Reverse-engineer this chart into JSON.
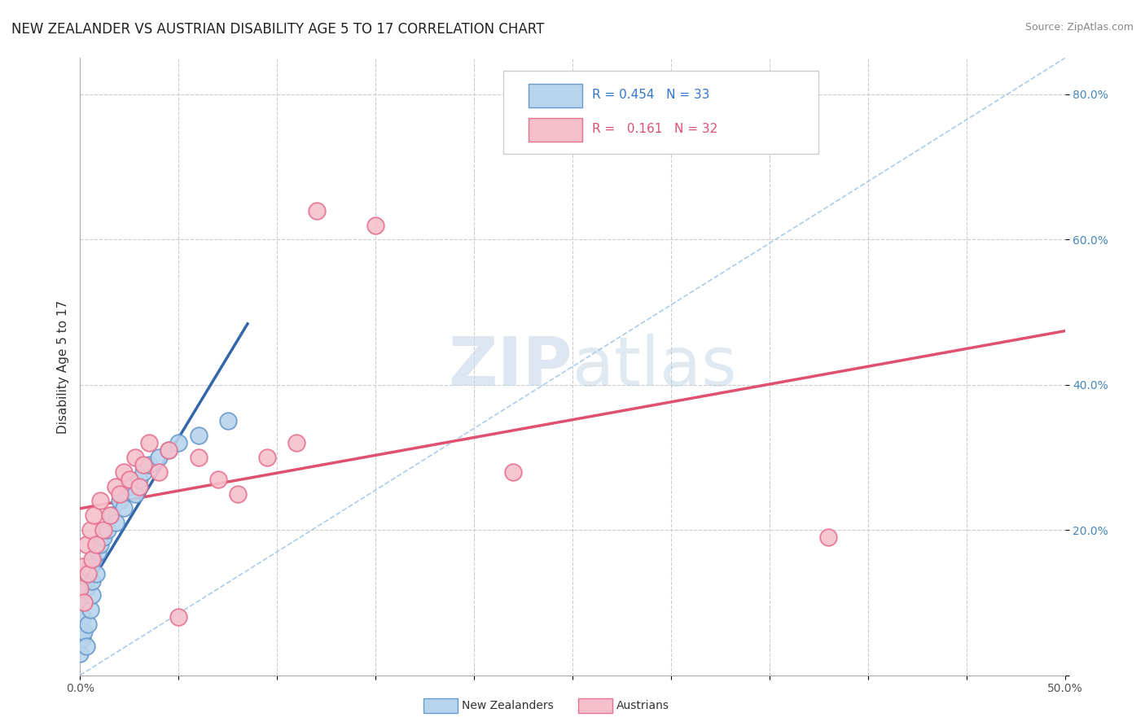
{
  "title": "NEW ZEALANDER VS AUSTRIAN DISABILITY AGE 5 TO 17 CORRELATION CHART",
  "source_text": "Source: ZipAtlas.com",
  "ylabel": "Disability Age 5 to 17",
  "xlim": [
    0.0,
    0.5
  ],
  "ylim": [
    0.0,
    0.85
  ],
  "watermark_zip": "ZIP",
  "watermark_atlas": "atlas",
  "nz_color": "#b8d4ed",
  "nz_edge_color": "#6699cc",
  "au_color": "#f5c0cc",
  "au_edge_color": "#e87090",
  "nz_R": 0.454,
  "nz_N": 33,
  "au_R": 0.161,
  "au_N": 32,
  "nz_line_color": "#3366aa",
  "au_line_color": "#e05070",
  "diagonal_color": "#aaccee",
  "nz_x": [
    0.0,
    0.001,
    0.001,
    0.002,
    0.002,
    0.003,
    0.003,
    0.004,
    0.004,
    0.005,
    0.005,
    0.006,
    0.006,
    0.007,
    0.008,
    0.009,
    0.01,
    0.012,
    0.014,
    0.016,
    0.018,
    0.02,
    0.022,
    0.025,
    0.028,
    0.03,
    0.032,
    0.035,
    0.04,
    0.045,
    0.05,
    0.06,
    0.075
  ],
  "nz_y": [
    0.03,
    0.05,
    0.08,
    0.06,
    0.1,
    0.04,
    0.12,
    0.07,
    0.14,
    0.09,
    0.15,
    0.11,
    0.13,
    0.16,
    0.14,
    0.17,
    0.18,
    0.19,
    0.2,
    0.22,
    0.21,
    0.24,
    0.23,
    0.26,
    0.25,
    0.27,
    0.28,
    0.29,
    0.3,
    0.31,
    0.32,
    0.33,
    0.35
  ],
  "au_x": [
    0.0,
    0.001,
    0.002,
    0.003,
    0.004,
    0.005,
    0.006,
    0.007,
    0.008,
    0.01,
    0.012,
    0.015,
    0.018,
    0.02,
    0.022,
    0.025,
    0.028,
    0.03,
    0.032,
    0.035,
    0.04,
    0.045,
    0.05,
    0.06,
    0.07,
    0.08,
    0.095,
    0.11,
    0.12,
    0.15,
    0.22,
    0.38
  ],
  "au_y": [
    0.12,
    0.15,
    0.1,
    0.18,
    0.14,
    0.2,
    0.16,
    0.22,
    0.18,
    0.24,
    0.2,
    0.22,
    0.26,
    0.25,
    0.28,
    0.27,
    0.3,
    0.26,
    0.29,
    0.32,
    0.28,
    0.31,
    0.08,
    0.3,
    0.27,
    0.25,
    0.3,
    0.32,
    0.64,
    0.62,
    0.28,
    0.19
  ]
}
